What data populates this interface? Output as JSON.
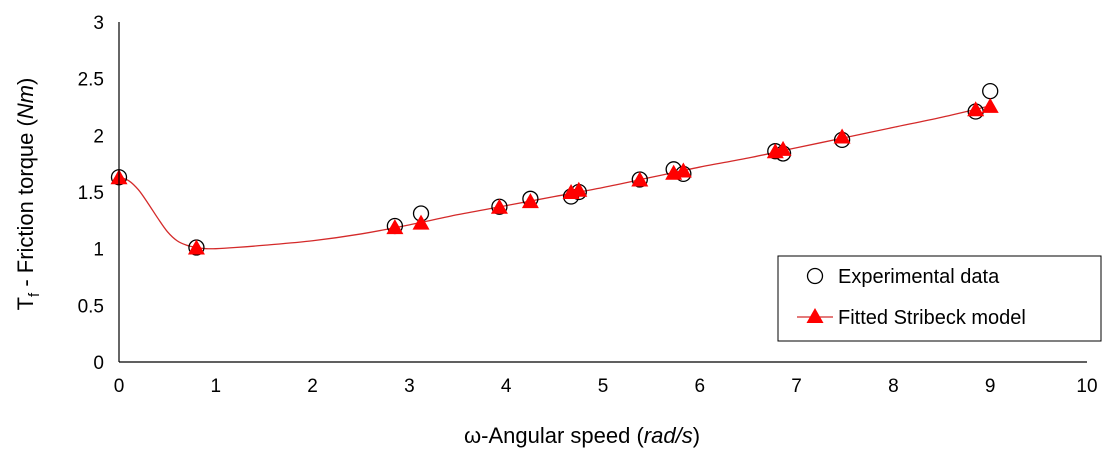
{
  "chart_data": {
    "type": "scatter",
    "title": "",
    "xlabel": {
      "prefix": "ω-Angular speed (",
      "unit": "rad/s",
      "suffix": ")"
    },
    "ylabel": {
      "main": "T",
      "sub": "f",
      "rest": " - Friction torque (",
      "unit": "Nm",
      "suffix": ")"
    },
    "xlim": [
      0,
      10
    ],
    "ylim": [
      0,
      3
    ],
    "x_ticks": [
      0,
      1,
      2,
      3,
      4,
      5,
      6,
      7,
      8,
      9,
      10
    ],
    "y_ticks": [
      0,
      0.5,
      1,
      1.5,
      2,
      2.5,
      3
    ],
    "y_tick_labels": [
      "0",
      "0.5",
      "1",
      "1.5",
      "2",
      "2.5",
      "3"
    ],
    "grid": false,
    "legend_position": "bottom-right",
    "series": [
      {
        "name": "Experimental data",
        "marker": "open-circle",
        "color": "#000000",
        "x": [
          0,
          0.8,
          2.85,
          3.12,
          3.93,
          4.25,
          4.67,
          4.75,
          5.38,
          5.73,
          5.83,
          6.78,
          6.86,
          7.47,
          8.85,
          9.0
        ],
        "y": [
          1.63,
          1.01,
          1.2,
          1.31,
          1.37,
          1.44,
          1.46,
          1.5,
          1.61,
          1.7,
          1.66,
          1.86,
          1.84,
          1.96,
          2.21,
          2.39
        ]
      },
      {
        "name": "Fitted Stribeck model",
        "marker": "filled-triangle",
        "line": true,
        "color": "#ff0000",
        "line_color": "#d42a2a",
        "x": [
          0,
          0.8,
          2.85,
          3.12,
          3.93,
          4.25,
          4.67,
          4.75,
          5.38,
          5.73,
          5.83,
          6.78,
          6.86,
          7.47,
          8.85,
          9.0
        ],
        "y": [
          1.63,
          1.01,
          1.19,
          1.23,
          1.37,
          1.42,
          1.5,
          1.52,
          1.61,
          1.67,
          1.69,
          1.86,
          1.88,
          1.99,
          2.23,
          2.26
        ],
        "curve": {
          "x": [
            0,
            0.1,
            0.2,
            0.3,
            0.4,
            0.5,
            0.6,
            0.7,
            0.8,
            0.9,
            1.0,
            1.2,
            1.5,
            2.0,
            2.5,
            3.0,
            3.5,
            4.0,
            4.5,
            5.0,
            5.5,
            6.0,
            6.5,
            7.0,
            7.5,
            8.0,
            8.5,
            9.0
          ],
          "y": [
            1.63,
            1.6,
            1.52,
            1.4,
            1.27,
            1.15,
            1.07,
            1.03,
            1.01,
            1.0,
            1.0,
            1.01,
            1.03,
            1.07,
            1.13,
            1.21,
            1.3,
            1.38,
            1.46,
            1.54,
            1.63,
            1.72,
            1.8,
            1.89,
            1.98,
            2.07,
            2.16,
            2.26
          ]
        }
      }
    ]
  }
}
